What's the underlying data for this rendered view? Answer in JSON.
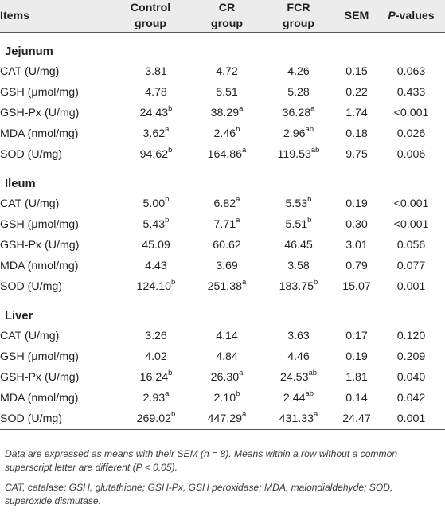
{
  "header": {
    "items": "Items",
    "control": [
      "Control",
      "group"
    ],
    "cr": [
      "CR",
      "group"
    ],
    "fcr": [
      "FCR",
      "group"
    ],
    "sem": "SEM",
    "p_italic": "P",
    "p_rest": "-values"
  },
  "sections": [
    {
      "name": "Jejunum",
      "rows": [
        {
          "item": "CAT (U/mg)",
          "control": "3.81",
          "control_sup": "",
          "cr": "4.72",
          "cr_sup": "",
          "fcr": "4.26",
          "fcr_sup": "",
          "sem": "0.15",
          "p": "0.063"
        },
        {
          "item": "GSH (μmol/mg)",
          "control": "4.78",
          "control_sup": "",
          "cr": "5.51",
          "cr_sup": "",
          "fcr": "5.28",
          "fcr_sup": "",
          "sem": "0.22",
          "p": "0.433"
        },
        {
          "item": "GSH-Px (U/mg)",
          "control": "24.43",
          "control_sup": "b",
          "cr": "38.29",
          "cr_sup": "a",
          "fcr": "36.28",
          "fcr_sup": "a",
          "sem": "1.74",
          "p": "<0.001"
        },
        {
          "item": "MDA (nmol/mg)",
          "control": "3.62",
          "control_sup": "a",
          "cr": "2.46",
          "cr_sup": "b",
          "fcr": "2.96",
          "fcr_sup": "ab",
          "sem": "0.18",
          "p": "0.026"
        },
        {
          "item": "SOD (U/mg)",
          "control": "94.62",
          "control_sup": "b",
          "cr": "164.86",
          "cr_sup": "a",
          "fcr": "119.53",
          "fcr_sup": "ab",
          "sem": "9.75",
          "p": "0.006"
        }
      ]
    },
    {
      "name": "Ileum",
      "rows": [
        {
          "item": "CAT (U/mg)",
          "control": "5.00",
          "control_sup": "b",
          "cr": "6.82",
          "cr_sup": "a",
          "fcr": "5.53",
          "fcr_sup": "b",
          "sem": "0.19",
          "p": "<0.001"
        },
        {
          "item": "GSH (μmol/mg)",
          "control": "5.43",
          "control_sup": "b",
          "cr": "7.71",
          "cr_sup": "a",
          "fcr": "5.51",
          "fcr_sup": "b",
          "sem": "0.30",
          "p": "<0.001"
        },
        {
          "item": "GSH-Px (U/mg)",
          "control": "45.09",
          "control_sup": "",
          "cr": "60.62",
          "cr_sup": "",
          "fcr": "46.45",
          "fcr_sup": "",
          "sem": "3.01",
          "p": "0.056"
        },
        {
          "item": "MDA (nmol/mg)",
          "control": "4.43",
          "control_sup": "",
          "cr": "3.69",
          "cr_sup": "",
          "fcr": "3.58",
          "fcr_sup": "",
          "sem": "0.79",
          "p": "0.077"
        },
        {
          "item": "SOD (U/mg)",
          "control": "124.10",
          "control_sup": "b",
          "cr": "251.38",
          "cr_sup": "a",
          "fcr": "183.75",
          "fcr_sup": "b",
          "sem": "15.07",
          "p": "0.001"
        }
      ]
    },
    {
      "name": "Liver",
      "rows": [
        {
          "item": "CAT (U/mg)",
          "control": "3.26",
          "control_sup": "",
          "cr": "4.14",
          "cr_sup": "",
          "fcr": "3.63",
          "fcr_sup": "",
          "sem": "0.17",
          "p": "0.120"
        },
        {
          "item": "GSH (μmol/mg)",
          "control": "4.02",
          "control_sup": "",
          "cr": "4.84",
          "cr_sup": "",
          "fcr": "4.46",
          "fcr_sup": "",
          "sem": "0.19",
          "p": "0.209"
        },
        {
          "item": "GSH-Px (U/mg)",
          "control": "16.24",
          "control_sup": "b",
          "cr": "26.30",
          "cr_sup": "a",
          "fcr": "24.53",
          "fcr_sup": "ab",
          "sem": "1.81",
          "p": "0.040"
        },
        {
          "item": "MDA (nmol/mg)",
          "control": "2.93",
          "control_sup": "a",
          "cr": "2.10",
          "cr_sup": "b",
          "fcr": "2.44",
          "fcr_sup": "ab",
          "sem": "0.14",
          "p": "0.042"
        },
        {
          "item": "SOD (U/mg)",
          "control": "269.02",
          "control_sup": "b",
          "cr": "447.29",
          "cr_sup": "a",
          "fcr": "431.33",
          "fcr_sup": "a",
          "sem": "24.47",
          "p": "0.001"
        }
      ]
    }
  ],
  "footnote1": "Data are expressed as means with their SEM (n = 8). Means within a row without a common superscript letter are different (P < 0.05).",
  "footnote2": "CAT, catalase; GSH, glutathione; GSH-Px, GSH peroxidase; MDA, malondialdehyde; SOD, superoxide dismutase."
}
